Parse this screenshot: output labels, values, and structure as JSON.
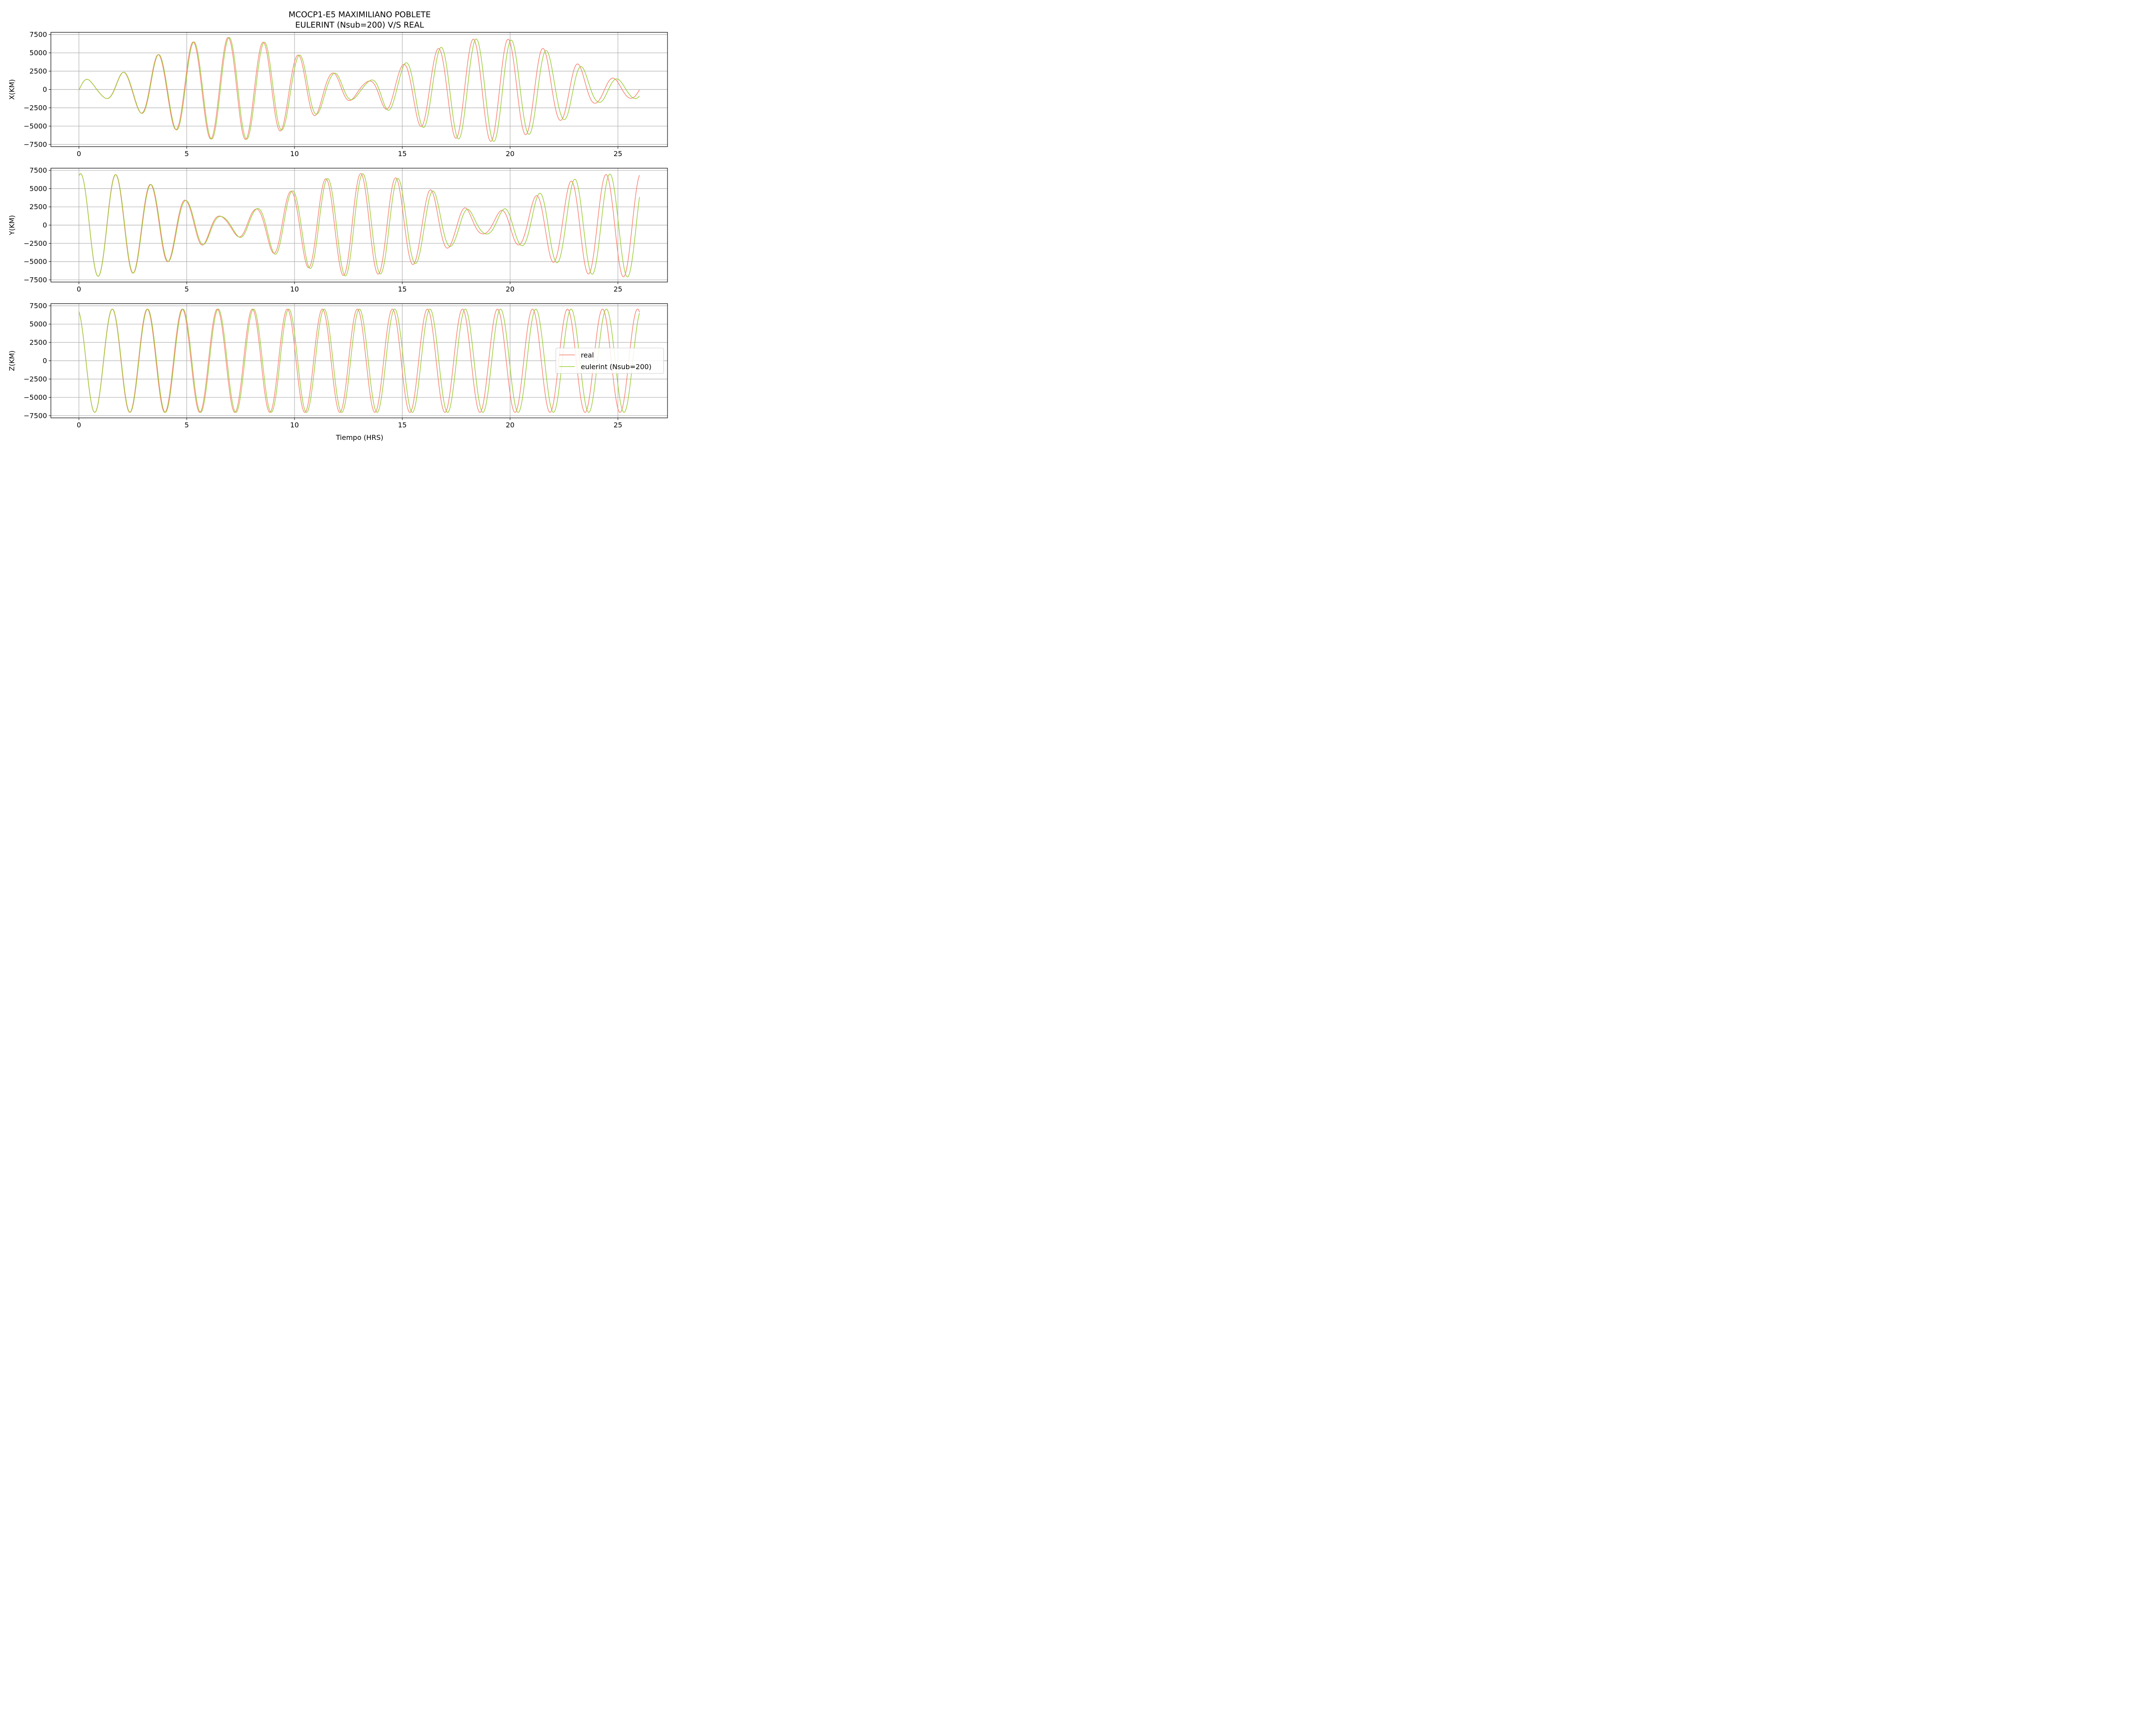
{
  "figure": {
    "title_line1": "MCOCP1-E5 MAXIMILIANO POBLETE",
    "title_line2": "EULERINT (Nsub=200) V/S REAL",
    "xlabel": "Tiempo (HRS)"
  },
  "colors": {
    "real": "#fa8072",
    "eulerint": "#9acd32",
    "grid": "#b0b0b0"
  },
  "legend": {
    "placement": "center-right",
    "items": [
      {
        "label": "real",
        "color": "#fa8072"
      },
      {
        "label": "eulerint (Nsub=200)",
        "color": "#9acd32"
      }
    ]
  },
  "chart_data": [
    {
      "type": "line",
      "ylabel": "X(KM)",
      "xlim": [
        -1.3,
        27.3
      ],
      "ylim": [
        -7800,
        7800
      ],
      "xticks": [
        0,
        5,
        10,
        15,
        20,
        25
      ],
      "yticks": [
        7500,
        5000,
        2500,
        0,
        -2500,
        -5000,
        -7500
      ],
      "grid": true,
      "series": [
        {
          "name": "real",
          "color": "#fa8072"
        },
        {
          "name": "eulerint (Nsub=200)",
          "color": "#9acd32"
        }
      ],
      "model": {
        "period_hrs": 1.6245,
        "phase": -0.06,
        "envelope": [
          [
            0,
            1650
          ],
          [
            0.9,
            1000
          ],
          [
            2.3,
            2450
          ],
          [
            3.8,
            4800
          ],
          [
            5.4,
            6500
          ],
          [
            7.0,
            7100
          ],
          [
            8.6,
            6450
          ],
          [
            10.2,
            4700
          ],
          [
            11.8,
            2250
          ],
          [
            13.2,
            1000
          ],
          [
            14.6,
            3000
          ],
          [
            16.2,
            5300
          ],
          [
            17.8,
            6800
          ],
          [
            19.4,
            7100
          ],
          [
            21.0,
            6100
          ],
          [
            22.6,
            4100
          ],
          [
            24.2,
            1750
          ],
          [
            25.6,
            1200
          ],
          [
            26.0,
            1300
          ]
        ],
        "series_phase_drift": [
          0,
          -0.028
        ]
      }
    },
    {
      "type": "line",
      "ylabel": "Y(KM)",
      "xlim": [
        -1.3,
        27.3
      ],
      "ylim": [
        -7800,
        7800
      ],
      "xticks": [
        0,
        5,
        10,
        15,
        20,
        25
      ],
      "yticks": [
        7500,
        5000,
        2500,
        0,
        -2500,
        -5000,
        -7500
      ],
      "grid": true,
      "series": [
        {
          "name": "real",
          "color": "#fa8072"
        },
        {
          "name": "eulerint (Nsub=200)",
          "color": "#9acd32"
        }
      ],
      "model": {
        "period_hrs": 1.6245,
        "phase": 1.27,
        "envelope": [
          [
            0,
            7050
          ],
          [
            1.4,
            7000
          ],
          [
            2.1,
            6800
          ],
          [
            3.7,
            5400
          ],
          [
            5.3,
            3150
          ],
          [
            6.8,
            1100
          ],
          [
            8.0,
            2100
          ],
          [
            9.6,
            4550
          ],
          [
            11.2,
            6300
          ],
          [
            12.8,
            7100
          ],
          [
            14.4,
            6600
          ],
          [
            16.1,
            4950
          ],
          [
            17.6,
            2600
          ],
          [
            18.8,
            1200
          ],
          [
            20.3,
            2700
          ],
          [
            22.0,
            5100
          ],
          [
            23.5,
            6700
          ],
          [
            25.2,
            7100
          ],
          [
            26.0,
            7100
          ]
        ],
        "series_phase_drift": [
          0,
          -0.028
        ]
      }
    },
    {
      "type": "line",
      "ylabel": "Z(KM)",
      "xlim": [
        -1.3,
        27.3
      ],
      "ylim": [
        -7800,
        7800
      ],
      "xticks": [
        0,
        5,
        10,
        15,
        20,
        25
      ],
      "yticks": [
        7500,
        5000,
        2500,
        0,
        -2500,
        -5000,
        -7500
      ],
      "grid": true,
      "series": [
        {
          "name": "real",
          "color": "#fa8072"
        },
        {
          "name": "eulerint (Nsub=200)",
          "color": "#9acd32"
        }
      ],
      "model": {
        "period_hrs": 1.6245,
        "phase": 1.88,
        "envelope": [
          [
            0,
            7050
          ],
          [
            26.0,
            7050
          ]
        ],
        "series_phase_drift": [
          0,
          -0.028
        ]
      }
    }
  ]
}
